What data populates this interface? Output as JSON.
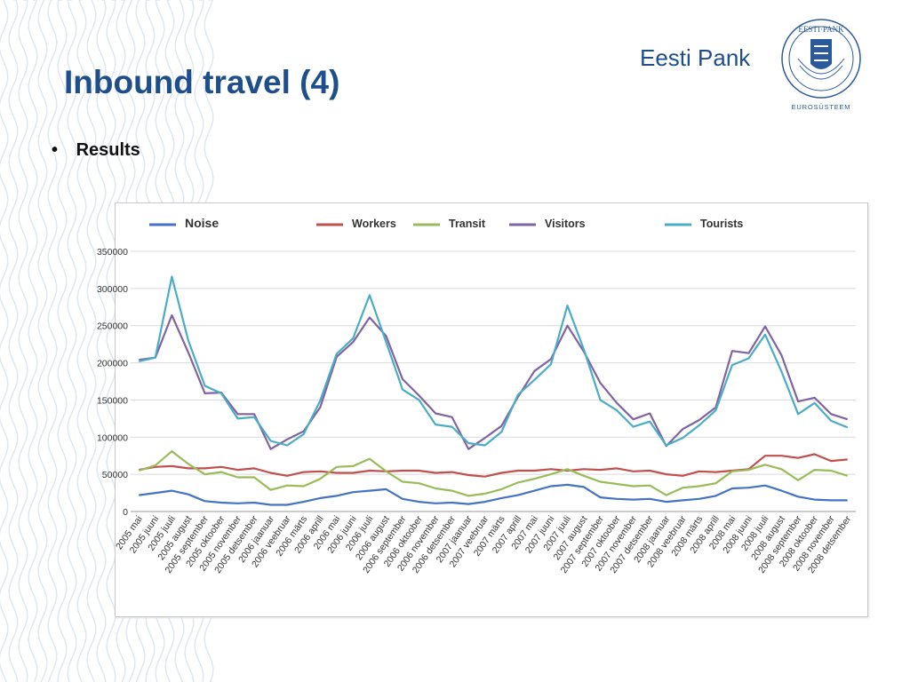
{
  "slide": {
    "title": "Inbound travel (4)",
    "brand": "Eesti Pank",
    "seal_text": "EESTI·PANK",
    "seal_caption": "EUROSÜSTEEM",
    "bullet": "Results"
  },
  "colors": {
    "title": "#1f4e8c",
    "Noise": "#4472c4",
    "Workers": "#c0504d",
    "Transit": "#9bbb59",
    "Visitors": "#8064a2",
    "Tourists": "#4bacc6"
  },
  "chart_data": {
    "type": "line",
    "legend_position": "top",
    "grid": "horizontal",
    "ylim": [
      0,
      350000
    ],
    "y_ticks": [
      "0",
      "50000",
      "100000",
      "150000",
      "200000",
      "250000",
      "300000",
      "350000"
    ],
    "categories": [
      "2005 mai",
      "2005 juuni",
      "2005 juuli",
      "2005 august",
      "2005 september",
      "2005 oktoober",
      "2005 november",
      "2005 detsember",
      "2006 jaanuar",
      "2006 veebruar",
      "2006 märts",
      "2006 aprill",
      "2006 mai",
      "2006 juuni",
      "2006 juuli",
      "2006 august",
      "2006 september",
      "2006 oktoober",
      "2006 november",
      "2006 detsember",
      "2007 jaanuar",
      "2007 veebruar",
      "2007 märts",
      "2007 aprill",
      "2007 mai",
      "2007 juuni",
      "2007 juuli",
      "2007 august",
      "2007 september",
      "2007 oktoober",
      "2007 november",
      "2007 detsember",
      "2008 jaanuar",
      "2008 veebruar",
      "2008 märts",
      "2008 aprill",
      "2008 mai",
      "2008 juuni",
      "2008 juuli",
      "2008 august",
      "2008 september",
      "2008 oktoober",
      "2008 november",
      "2008 detsember"
    ],
    "series": [
      {
        "name": "Noise",
        "values": [
          22000,
          25000,
          28000,
          23000,
          14000,
          12000,
          11000,
          12000,
          9000,
          9000,
          13000,
          18000,
          21000,
          26000,
          28000,
          30000,
          17000,
          13000,
          11000,
          12000,
          10000,
          13000,
          18000,
          22000,
          28000,
          34000,
          36000,
          33000,
          19000,
          17000,
          16000,
          17000,
          13000,
          15000,
          17000,
          21000,
          31000,
          32000,
          35000,
          28000,
          20000,
          16000,
          15000,
          15000
        ]
      },
      {
        "name": "Workers",
        "values": [
          56000,
          60000,
          61000,
          58000,
          58000,
          60000,
          56000,
          58000,
          52000,
          48000,
          53000,
          54000,
          52000,
          52000,
          55000,
          54000,
          55000,
          55000,
          52000,
          53000,
          49000,
          47000,
          52000,
          55000,
          55000,
          57000,
          55000,
          57000,
          56000,
          58000,
          54000,
          55000,
          50000,
          48000,
          54000,
          53000,
          55000,
          57000,
          75000,
          75000,
          72000,
          77000,
          68000,
          70000
        ]
      },
      {
        "name": "Transit",
        "values": [
          55000,
          62000,
          81000,
          64000,
          50000,
          53000,
          46000,
          46000,
          29000,
          35000,
          34000,
          44000,
          60000,
          61000,
          71000,
          54000,
          40000,
          38000,
          31000,
          28000,
          21000,
          24000,
          30000,
          39000,
          44000,
          50000,
          57000,
          48000,
          40000,
          37000,
          34000,
          35000,
          22000,
          32000,
          34000,
          38000,
          54000,
          56000,
          63000,
          57000,
          42000,
          56000,
          55000,
          48000
        ]
      },
      {
        "name": "Visitors",
        "values": [
          204000,
          207000,
          264000,
          214000,
          159000,
          160000,
          131000,
          131000,
          84000,
          97000,
          108000,
          140000,
          208000,
          228000,
          261000,
          236000,
          178000,
          156000,
          132000,
          127000,
          84000,
          99000,
          115000,
          154000,
          189000,
          205000,
          250000,
          215000,
          173000,
          146000,
          124000,
          132000,
          88000,
          111000,
          123000,
          140000,
          216000,
          213000,
          249000,
          210000,
          148000,
          153000,
          131000,
          124000
        ]
      },
      {
        "name": "Tourists",
        "values": [
          202000,
          207000,
          316000,
          230000,
          169000,
          159000,
          125000,
          127000,
          95000,
          89000,
          104000,
          149000,
          212000,
          233000,
          291000,
          228000,
          164000,
          150000,
          117000,
          114000,
          92000,
          89000,
          107000,
          157000,
          177000,
          198000,
          277000,
          218000,
          150000,
          136000,
          114000,
          121000,
          89000,
          99000,
          116000,
          136000,
          197000,
          206000,
          238000,
          188000,
          131000,
          146000,
          122000,
          113000
        ]
      }
    ]
  }
}
